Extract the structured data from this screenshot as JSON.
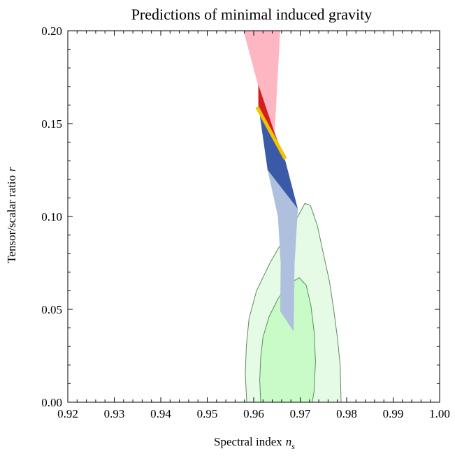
{
  "chart_data": {
    "type": "area",
    "title": "Predictions of minimal induced gravity",
    "xlabel": "Spectral index",
    "xlabel_sub": "s",
    "xlabel_var": "n",
    "ylabel": "Tensor/scalar ratio",
    "ylabel_var": "r",
    "xlim": [
      0.92,
      1.0
    ],
    "ylim": [
      0.0,
      0.2
    ],
    "xticks": [
      "0.92",
      "0.93",
      "0.94",
      "0.95",
      "0.96",
      "0.97",
      "0.98",
      "0.99",
      "1.00"
    ],
    "yticks": [
      "0.00",
      "0.05",
      "0.10",
      "0.15",
      "0.20"
    ],
    "x_tick_values": [
      0.92,
      0.93,
      0.94,
      0.95,
      0.96,
      0.97,
      0.98,
      0.99,
      1.0
    ],
    "y_tick_values": [
      0.0,
      0.05,
      0.1,
      0.15,
      0.2
    ],
    "grid": false,
    "regions": [
      {
        "id": "outer-contour",
        "fill": "#e6fbe6",
        "stroke": "#5f8a5f",
        "points": [
          [
            0.9585,
            0.0
          ],
          [
            0.9582,
            0.015
          ],
          [
            0.9584,
            0.03
          ],
          [
            0.959,
            0.045
          ],
          [
            0.9606,
            0.06
          ],
          [
            0.9635,
            0.075
          ],
          [
            0.9665,
            0.088
          ],
          [
            0.9695,
            0.1
          ],
          [
            0.971,
            0.107
          ],
          [
            0.9722,
            0.106
          ],
          [
            0.9737,
            0.095
          ],
          [
            0.975,
            0.08
          ],
          [
            0.9763,
            0.065
          ],
          [
            0.9772,
            0.05
          ],
          [
            0.978,
            0.035
          ],
          [
            0.9786,
            0.02
          ],
          [
            0.9788,
            0.0
          ]
        ]
      },
      {
        "id": "inner-contour",
        "fill": "#c9fbc9",
        "stroke": "#5f8a5f",
        "points": [
          [
            0.9615,
            0.0
          ],
          [
            0.9613,
            0.012
          ],
          [
            0.9615,
            0.024
          ],
          [
            0.962,
            0.035
          ],
          [
            0.9633,
            0.046
          ],
          [
            0.9653,
            0.056
          ],
          [
            0.9677,
            0.064
          ],
          [
            0.9698,
            0.067
          ],
          [
            0.9713,
            0.063
          ],
          [
            0.9723,
            0.052
          ],
          [
            0.973,
            0.038
          ],
          [
            0.9733,
            0.022
          ],
          [
            0.973,
            0.006
          ],
          [
            0.9726,
            0.0
          ]
        ]
      },
      {
        "id": "pink-band",
        "fill": "#ffb6c3",
        "stroke": "none",
        "points": [
          [
            0.9578,
            0.2
          ],
          [
            0.9657,
            0.2
          ],
          [
            0.9645,
            0.145
          ],
          [
            0.961,
            0.17
          ]
        ]
      },
      {
        "id": "red-band",
        "fill": "#d41f1f",
        "stroke": "none",
        "points": [
          [
            0.961,
            0.171
          ],
          [
            0.9645,
            0.145
          ],
          [
            0.9668,
            0.13
          ],
          [
            0.961,
            0.16
          ]
        ]
      },
      {
        "id": "blue-band",
        "fill": "#3a5aa8",
        "stroke": "none",
        "points": [
          [
            0.961,
            0.16
          ],
          [
            0.9668,
            0.13
          ],
          [
            0.9695,
            0.104
          ],
          [
            0.963,
            0.125
          ]
        ]
      },
      {
        "id": "light-blue-band",
        "fill": "#aec0dd",
        "stroke": "none",
        "points": [
          [
            0.963,
            0.125
          ],
          [
            0.9695,
            0.104
          ],
          [
            0.9688,
            0.075
          ],
          [
            0.9686,
            0.038
          ],
          [
            0.9657,
            0.049
          ],
          [
            0.9658,
            0.075
          ],
          [
            0.9652,
            0.1
          ]
        ]
      }
    ],
    "lines": [
      {
        "id": "yellow-line",
        "color": "#f2c400",
        "points": [
          [
            0.9607,
            0.159
          ],
          [
            0.9668,
            0.131
          ]
        ]
      }
    ]
  }
}
